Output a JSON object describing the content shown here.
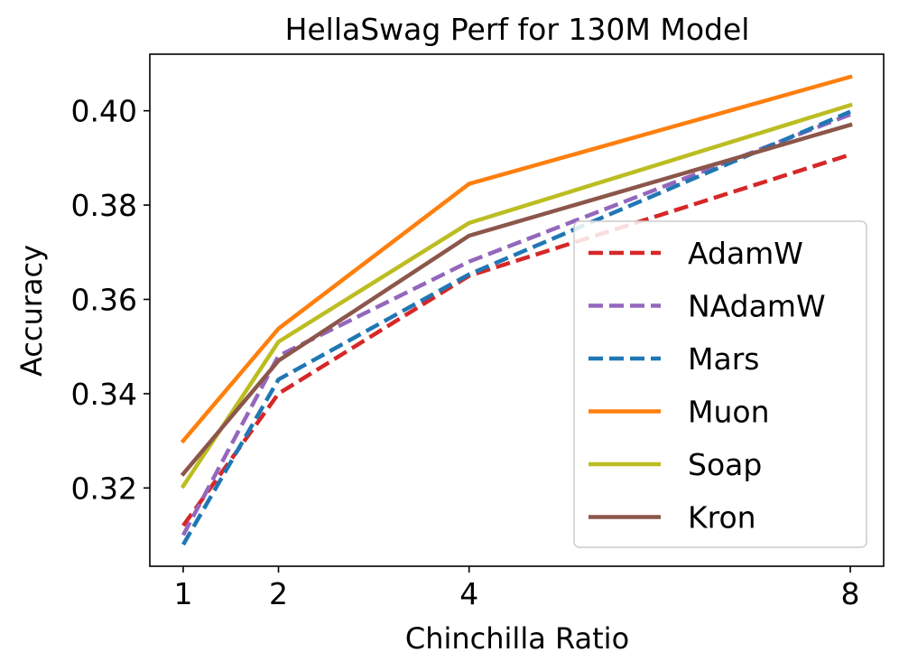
{
  "chart_data": {
    "type": "line",
    "title": "HellaSwag Perf for 130M Model",
    "xlabel": "Chinchilla Ratio",
    "ylabel": "Accuracy",
    "x": [
      1,
      2,
      4,
      8
    ],
    "xticks": [
      1,
      2,
      4,
      8
    ],
    "xtick_labels": [
      "1",
      "2",
      "4",
      "8"
    ],
    "yticks": [
      0.32,
      0.34,
      0.36,
      0.38,
      0.4
    ],
    "ytick_labels": [
      "0.32",
      "0.34",
      "0.36",
      "0.38",
      "0.40"
    ],
    "xlim": [
      0.65,
      8.35
    ],
    "ylim": [
      0.3034,
      0.412
    ],
    "grid": false,
    "legend_position": "lower-right",
    "series": [
      {
        "name": "AdamW",
        "values": [
          0.312,
          0.34,
          0.365,
          0.3907
        ],
        "color": "#d62728",
        "style": "dashed"
      },
      {
        "name": "NAdamW",
        "values": [
          0.31,
          0.348,
          0.368,
          0.3992
        ],
        "color": "#9467bd",
        "style": "dashed"
      },
      {
        "name": "Mars",
        "values": [
          0.308,
          0.343,
          0.3653,
          0.3998
        ],
        "color": "#1f77b4",
        "style": "dashed"
      },
      {
        "name": "Muon",
        "values": [
          0.33,
          0.3538,
          0.3845,
          0.4072
        ],
        "color": "#ff7f0e",
        "style": "solid"
      },
      {
        "name": "Soap",
        "values": [
          0.3204,
          0.351,
          0.3762,
          0.4012
        ],
        "color": "#bcbd22",
        "style": "solid"
      },
      {
        "name": "Kron",
        "values": [
          0.323,
          0.347,
          0.3735,
          0.397
        ],
        "color": "#8c564b",
        "style": "solid"
      }
    ]
  }
}
